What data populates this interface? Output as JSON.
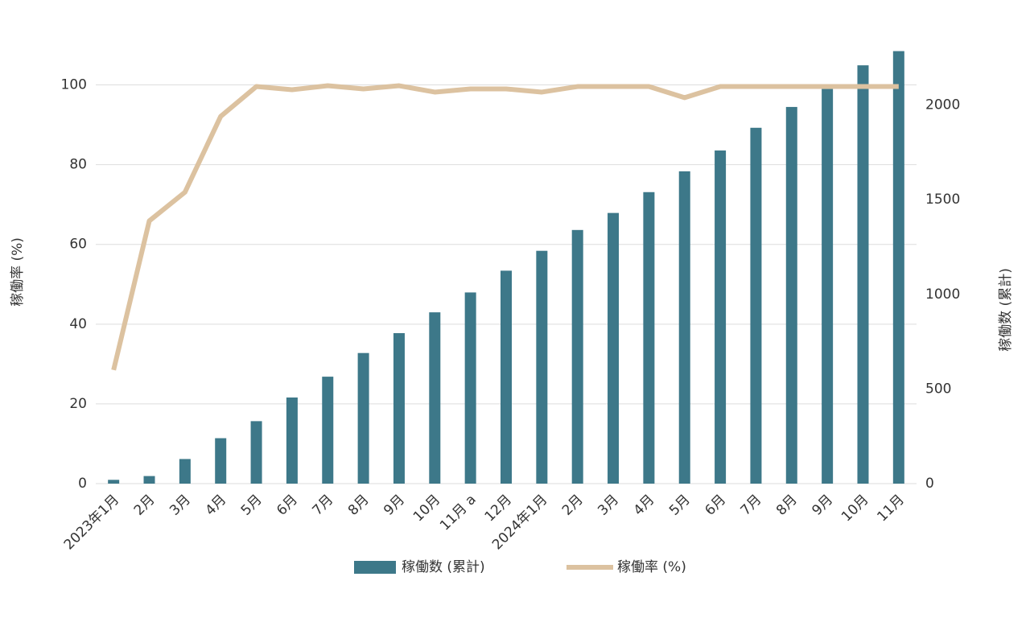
{
  "chart_data": {
    "type": "bar",
    "categories": [
      "2023年1月",
      "2月",
      "3月",
      "4月",
      "5月",
      "6月",
      "7月",
      "8月",
      "9月",
      "10月",
      "11月 a",
      "12月",
      "2024年1月",
      "2月",
      "3月",
      "4月",
      "5月",
      "6月",
      "7月",
      "8月",
      "9月",
      "10月",
      "11月"
    ],
    "y_label": "稼働率 (%)",
    "y2_label": "稼働数 (累計)",
    "series": [
      {
        "name": "稼働数 (累計)",
        "type": "bar",
        "axis": "y2",
        "color": "#3d7889",
        "values": [
          20,
          40,
          130,
          240,
          330,
          455,
          565,
          690,
          795,
          905,
          1010,
          1125,
          1230,
          1340,
          1430,
          1540,
          1650,
          1760,
          1880,
          1990,
          2085,
          2210,
          2285
        ]
      },
      {
        "name": "稼働率 (%)",
        "type": "line",
        "axis": "y",
        "color": "#dcc2a0",
        "values": [
          28.5,
          65.9,
          73.1,
          92.1,
          99.6,
          98.8,
          99.8,
          99.0,
          99.8,
          98.2,
          99.0,
          99.0,
          98.2,
          99.6,
          99.6,
          99.6,
          96.8,
          99.6,
          99.6,
          99.6,
          99.6,
          99.6,
          99.6
        ]
      }
    ],
    "ylim": [
      0,
      110
    ],
    "yticks": [
      0,
      20,
      40,
      60,
      80,
      100
    ],
    "y2lim": [
      0,
      2317
    ],
    "y2ticks": [
      0,
      500,
      1000,
      1500,
      2000
    ],
    "grid": true,
    "legend": "bottom"
  }
}
